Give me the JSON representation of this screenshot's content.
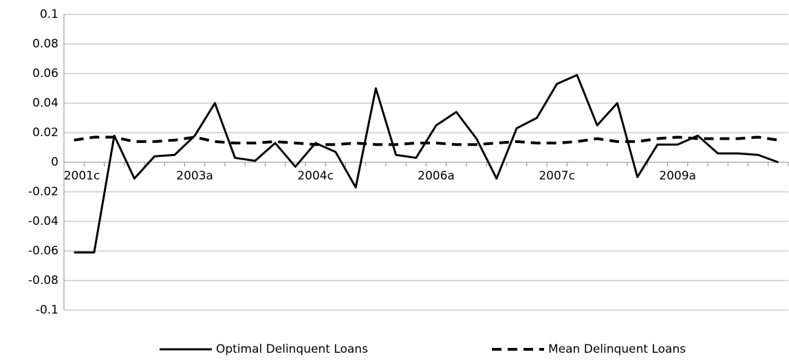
{
  "chart_data": {
    "type": "line",
    "categories": [
      "2001c",
      null,
      null,
      null,
      null,
      null,
      "2003a",
      null,
      null,
      null,
      null,
      null,
      "2004c",
      null,
      null,
      null,
      null,
      null,
      "2006a",
      null,
      null,
      null,
      null,
      null,
      "2007c",
      null,
      null,
      null,
      null,
      null,
      "2009a",
      null,
      null,
      null,
      null,
      null
    ],
    "series": [
      {
        "name": "Optimal Delinquent Loans",
        "color": "#000000",
        "dash": false,
        "values": [
          -0.061,
          -0.061,
          0.018,
          -0.011,
          0.004,
          0.005,
          0.018,
          0.04,
          0.003,
          0.001,
          0.013,
          -0.003,
          0.013,
          0.007,
          -0.017,
          0.05,
          0.005,
          0.003,
          0.025,
          0.034,
          0.016,
          -0.011,
          0.023,
          0.03,
          0.053,
          0.059,
          0.025,
          0.04,
          -0.01,
          0.012,
          0.012,
          0.018,
          0.006,
          0.006,
          0.005,
          0.0
        ]
      },
      {
        "name": "Mean Delinquent Loans",
        "color": "#000000",
        "dash": true,
        "values": [
          0.015,
          0.017,
          0.017,
          0.014,
          0.014,
          0.015,
          0.017,
          0.014,
          0.013,
          0.013,
          0.014,
          0.013,
          0.012,
          0.012,
          0.013,
          0.012,
          0.012,
          0.013,
          0.013,
          0.012,
          0.012,
          0.013,
          0.014,
          0.013,
          0.013,
          0.014,
          0.016,
          0.014,
          0.014,
          0.016,
          0.017,
          0.016,
          0.016,
          0.016,
          0.017,
          0.015
        ]
      }
    ],
    "ylim": [
      -0.1,
      0.1
    ],
    "yticks": [
      -0.1,
      -0.08,
      -0.06,
      -0.04,
      -0.02,
      0,
      0.02,
      0.04,
      0.06,
      0.08,
      0.1
    ],
    "grid": true,
    "legend": "bottom"
  }
}
